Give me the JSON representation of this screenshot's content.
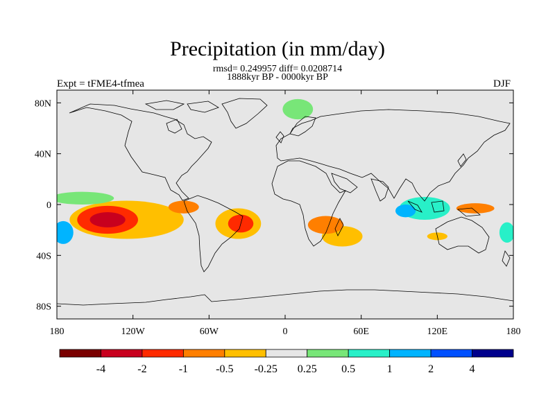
{
  "title": "Precipitation (in mm/day)",
  "stats_line": "rmsd= 0.249957 diff= 0.0208714",
  "period_line": "1888kyr BP - 0000kyr BP",
  "experiment_label": "Expt = tFME4-tfmea",
  "season_label": "DJF",
  "map": {
    "projection": "cylindrical equidistant",
    "background_color": "#e6e6e6",
    "lon_range": [
      -180,
      180
    ],
    "lat_range": [
      -90,
      90
    ],
    "x_ticks": [
      {
        "lon": -180,
        "label": "180"
      },
      {
        "lon": -120,
        "label": "120W"
      },
      {
        "lon": -60,
        "label": "60W"
      },
      {
        "lon": 0,
        "label": "0"
      },
      {
        "lon": 60,
        "label": "60E"
      },
      {
        "lon": 120,
        "label": "120E"
      },
      {
        "lon": 180,
        "label": "180"
      }
    ],
    "y_ticks": [
      {
        "lat": 80,
        "label": "80N"
      },
      {
        "lat": 40,
        "label": "40N"
      },
      {
        "lat": 0,
        "label": "0"
      },
      {
        "lat": -40,
        "label": "40S"
      },
      {
        "lat": -80,
        "label": "80S"
      }
    ]
  },
  "colorbar": {
    "levels": [
      "-4",
      "-2",
      "-1",
      "-0.5",
      "-0.25",
      "0.25",
      "0.5",
      "1",
      "2",
      "4"
    ],
    "colors": [
      "#7a0000",
      "#c8001e",
      "#ff2a00",
      "#ff7f00",
      "#ffbf00",
      "#e6e6e6",
      "#78e678",
      "#28f0c8",
      "#00b4ff",
      "#0050ff",
      "#00008c"
    ]
  },
  "chart_data": {
    "type": "heatmap",
    "title": "Precipitation (in mm/day)",
    "subtitle": "rmsd= 0.249957 diff= 0.0208714 / 1888kyr BP - 0000kyr BP",
    "xlabel": "",
    "ylabel": "",
    "xlim": [
      -180,
      180
    ],
    "ylim": [
      -90,
      90
    ],
    "note_units": "mm/day",
    "anomaly_regions": [
      {
        "lon": -140,
        "lat": -12,
        "rx": 14,
        "ry": 6,
        "level": -4
      },
      {
        "lon": -140,
        "lat": -12,
        "rx": 24,
        "ry": 11,
        "level": -2
      },
      {
        "lon": -125,
        "lat": -12,
        "rx": 45,
        "ry": 15,
        "level": -0.5
      },
      {
        "lon": -160,
        "lat": 5,
        "rx": 25,
        "ry": 5,
        "level": 0.5
      },
      {
        "lon": -175,
        "lat": -22,
        "rx": 8,
        "ry": 9,
        "level": 2
      },
      {
        "lon": -80,
        "lat": -2,
        "rx": 12,
        "ry": 5,
        "level": -1
      },
      {
        "lon": -35,
        "lat": -15,
        "rx": 10,
        "ry": 7,
        "level": -2
      },
      {
        "lon": -37,
        "lat": -15,
        "rx": 18,
        "ry": 12,
        "level": -0.5
      },
      {
        "lon": 32,
        "lat": -16,
        "rx": 14,
        "ry": 7,
        "level": -1
      },
      {
        "lon": 45,
        "lat": -25,
        "rx": 16,
        "ry": 8,
        "level": -0.5
      },
      {
        "lon": 95,
        "lat": -5,
        "rx": 8,
        "ry": 5,
        "level": 2
      },
      {
        "lon": 110,
        "lat": -3,
        "rx": 20,
        "ry": 9,
        "level": 1
      },
      {
        "lon": 150,
        "lat": -3,
        "rx": 15,
        "ry": 4,
        "level": -1
      },
      {
        "lon": 120,
        "lat": -25,
        "rx": 8,
        "ry": 3,
        "level": -0.5
      },
      {
        "lon": 175,
        "lat": -22,
        "rx": 6,
        "ry": 8,
        "level": 1
      },
      {
        "lon": 10,
        "lat": 75,
        "rx": 12,
        "ry": 8,
        "level": 0.5
      }
    ]
  }
}
